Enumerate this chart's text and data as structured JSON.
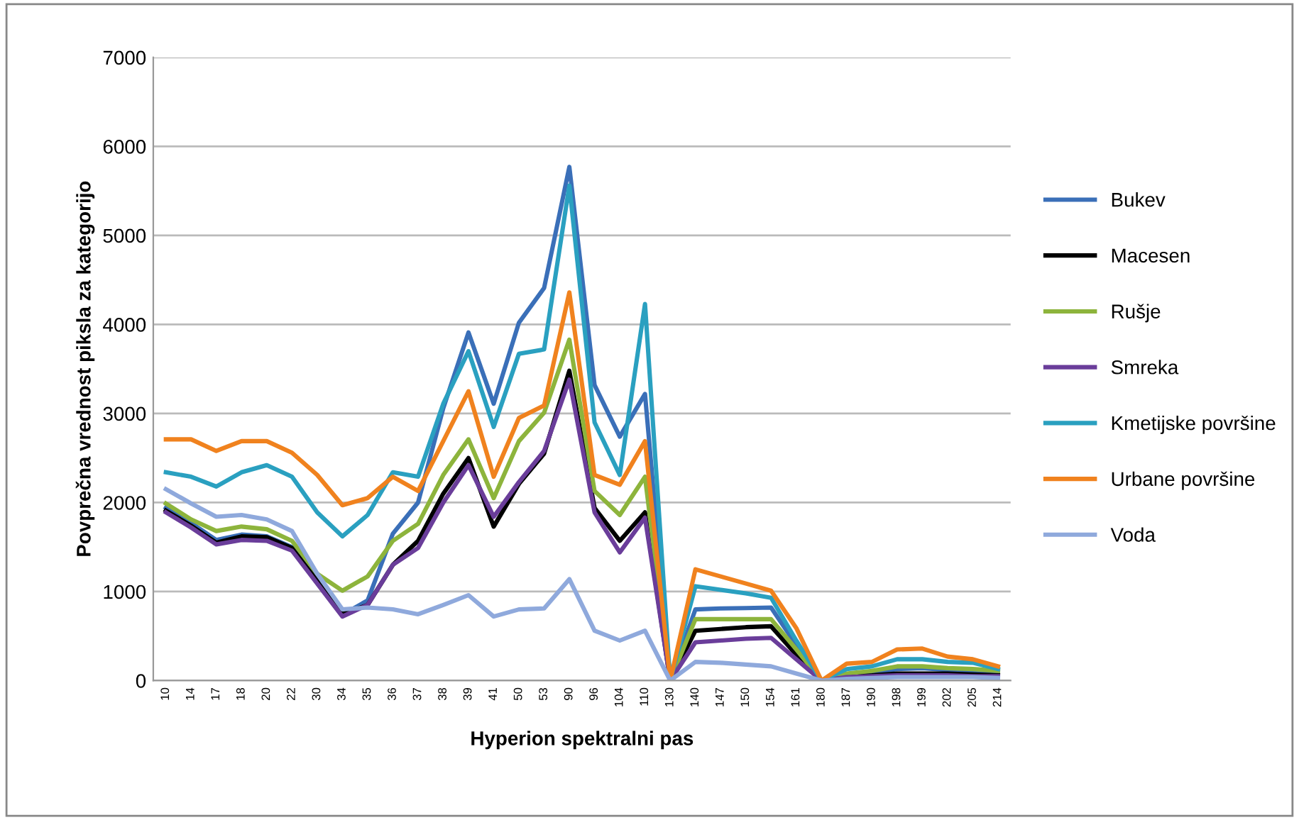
{
  "chart_data": {
    "type": "line",
    "xlabel": "Hyperion spektralni pas",
    "ylabel": "Povprečna vrednost piksla za kategorijo",
    "categories": [
      "10",
      "14",
      "17",
      "18",
      "20",
      "22",
      "30",
      "34",
      "35",
      "36",
      "37",
      "38",
      "39",
      "41",
      "50",
      "53",
      "90",
      "96",
      "104",
      "110",
      "130",
      "140",
      "147",
      "150",
      "154",
      "161",
      "180",
      "187",
      "190",
      "198",
      "199",
      "202",
      "205",
      "214"
    ],
    "ylim": [
      0,
      7000
    ],
    "yticks": [
      0,
      1000,
      2000,
      3000,
      4000,
      5000,
      6000,
      7000
    ],
    "grid": "y",
    "legend": "right",
    "marker": "none",
    "line_style": "solid",
    "series": [
      {
        "name": "Bukev",
        "color": "#3a6fb8",
        "values": [
          1940,
          1770,
          1580,
          1640,
          1620,
          1500,
          1130,
          740,
          900,
          1650,
          2000,
          3060,
          3910,
          3110,
          4020,
          4410,
          5770,
          3320,
          2740,
          3220,
          0,
          800,
          810,
          815,
          820,
          400,
          0,
          70,
          90,
          130,
          140,
          120,
          110,
          100
        ]
      },
      {
        "name": "Macesen",
        "color": "#000000",
        "values": [
          1910,
          1740,
          1550,
          1620,
          1610,
          1490,
          1120,
          745,
          850,
          1300,
          1570,
          2100,
          2500,
          1730,
          2210,
          2550,
          3480,
          1940,
          1570,
          1890,
          0,
          560,
          580,
          600,
          610,
          290,
          0,
          50,
          60,
          80,
          80,
          80,
          70,
          60
        ]
      },
      {
        "name": "Rušje",
        "color": "#8db43c",
        "values": [
          1990,
          1810,
          1680,
          1730,
          1700,
          1570,
          1200,
          1010,
          1170,
          1570,
          1760,
          2310,
          2710,
          2050,
          2690,
          3010,
          3830,
          2130,
          1860,
          2290,
          0,
          690,
          690,
          690,
          690,
          350,
          0,
          80,
          110,
          160,
          160,
          140,
          130,
          110
        ]
      },
      {
        "name": "Smreka",
        "color": "#6a3d9a",
        "values": [
          1890,
          1720,
          1530,
          1580,
          1570,
          1460,
          1090,
          720,
          850,
          1300,
          1490,
          2000,
          2420,
          1840,
          2230,
          2580,
          3380,
          1890,
          1440,
          1830,
          0,
          430,
          450,
          470,
          480,
          240,
          0,
          40,
          50,
          60,
          60,
          60,
          50,
          50
        ]
      },
      {
        "name": "Kmetijske površine",
        "color": "#2aa0c0",
        "values": [
          2340,
          2290,
          2180,
          2340,
          2420,
          2290,
          1890,
          1620,
          1860,
          2340,
          2290,
          3110,
          3700,
          2850,
          3670,
          3720,
          5560,
          2900,
          2310,
          4230,
          0,
          1060,
          1020,
          980,
          930,
          450,
          0,
          130,
          160,
          240,
          240,
          210,
          200,
          130
        ]
      },
      {
        "name": "Urbane površine",
        "color": "#f0821e",
        "values": [
          2710,
          2710,
          2580,
          2690,
          2690,
          2560,
          2310,
          1970,
          2050,
          2290,
          2130,
          2690,
          3250,
          2290,
          2950,
          3090,
          4360,
          2310,
          2200,
          2690,
          0,
          1250,
          1170,
          1090,
          1010,
          590,
          0,
          190,
          210,
          350,
          360,
          270,
          240,
          160
        ]
      },
      {
        "name": "Voda",
        "color": "#8fa9dc",
        "values": [
          2150,
          1990,
          1840,
          1860,
          1810,
          1680,
          1200,
          800,
          820,
          800,
          745,
          850,
          960,
          720,
          800,
          810,
          1140,
          560,
          450,
          560,
          0,
          210,
          200,
          180,
          160,
          80,
          0,
          20,
          30,
          40,
          40,
          40,
          40,
          30
        ]
      }
    ]
  }
}
